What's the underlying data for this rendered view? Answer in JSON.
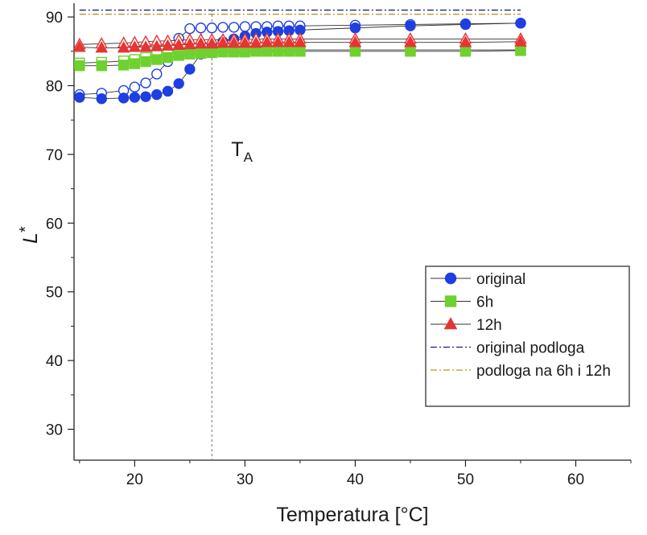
{
  "chart_data": {
    "type": "scatter",
    "xlabel": "Temperatura [°C]",
    "ylabel_main": "L",
    "ylabel_sup": "*",
    "xlim": [
      14.5,
      65
    ],
    "ylim": [
      25.5,
      92
    ],
    "x_ticks": [
      20,
      30,
      40,
      50,
      60
    ],
    "x_tick_labels": [
      "20",
      "30",
      "40",
      "50",
      "60"
    ],
    "y_ticks": [
      30,
      40,
      50,
      60,
      70,
      80,
      90
    ],
    "y_tick_labels": [
      "30",
      "40",
      "50",
      "60",
      "70",
      "80",
      "90"
    ],
    "grid": false,
    "legend_position": "center-right",
    "annotation": {
      "main": "T",
      "sub": "A",
      "x": 27
    },
    "series": [
      {
        "name": "original",
        "marker": "circle",
        "color": "#1f3fe0",
        "x": [
          15,
          17,
          19,
          20,
          21,
          22,
          23,
          24,
          25,
          26,
          27,
          28,
          29,
          30,
          31,
          32,
          33,
          34,
          35,
          40,
          45,
          50,
          55
        ],
        "filled": [
          78.3,
          78.1,
          78.2,
          78.3,
          78.4,
          78.7,
          79.2,
          80.3,
          82.4,
          84.6,
          85.7,
          86.4,
          86.8,
          87.2,
          87.6,
          87.8,
          87.9,
          88.0,
          88.1,
          88.4,
          88.7,
          88.9,
          89.1
        ],
        "open": [
          78.7,
          78.9,
          79.3,
          79.8,
          80.4,
          81.7,
          83.5,
          86.9,
          88.3,
          88.4,
          88.4,
          88.5,
          88.5,
          88.6,
          88.6,
          88.6,
          88.7,
          88.7,
          88.7,
          88.8,
          88.9,
          89.0,
          89.1
        ]
      },
      {
        "name": "6h",
        "marker": "square",
        "color": "#6fd12e",
        "x": [
          15,
          17,
          19,
          20,
          21,
          22,
          23,
          24,
          25,
          26,
          27,
          28,
          29,
          30,
          31,
          32,
          33,
          34,
          35,
          40,
          45,
          50,
          55
        ],
        "filled": [
          82.9,
          82.9,
          83.0,
          83.2,
          83.5,
          83.8,
          84.1,
          84.4,
          84.6,
          84.7,
          84.8,
          84.9,
          84.9,
          84.9,
          85.0,
          85.0,
          85.0,
          85.0,
          85.0,
          85.0,
          85.0,
          85.0,
          85.1
        ],
        "open": [
          83.3,
          83.4,
          83.6,
          83.8,
          84.1,
          84.4,
          84.6,
          84.8,
          84.9,
          85.0,
          85.0,
          85.1,
          85.1,
          85.1,
          85.1,
          85.1,
          85.2,
          85.2,
          85.2,
          85.2,
          85.2,
          85.2,
          85.2
        ]
      },
      {
        "name": "12h",
        "marker": "triangle",
        "color": "#e53535",
        "x": [
          15,
          17,
          19,
          20,
          21,
          22,
          23,
          24,
          25,
          26,
          27,
          28,
          29,
          30,
          31,
          32,
          33,
          34,
          35,
          40,
          45,
          50,
          55
        ],
        "filled": [
          85.6,
          85.5,
          85.5,
          85.6,
          85.6,
          85.7,
          85.8,
          85.9,
          86.0,
          86.1,
          86.1,
          86.2,
          86.2,
          86.2,
          86.2,
          86.3,
          86.3,
          86.3,
          86.3,
          86.3,
          86.3,
          86.3,
          86.4
        ],
        "open": [
          86.0,
          86.1,
          86.2,
          86.3,
          86.4,
          86.5,
          86.5,
          86.6,
          86.7,
          86.7,
          86.7,
          86.7,
          86.7,
          86.7,
          86.8,
          86.8,
          86.8,
          86.8,
          86.8,
          86.8,
          86.8,
          86.8,
          86.8
        ]
      }
    ],
    "reference_lines": [
      {
        "name": "original podloga",
        "y": 91.0,
        "color": "#1a1a9a"
      },
      {
        "name": "podloga na 6h i 12h",
        "y": 90.4,
        "color": "#b8961a"
      }
    ]
  }
}
